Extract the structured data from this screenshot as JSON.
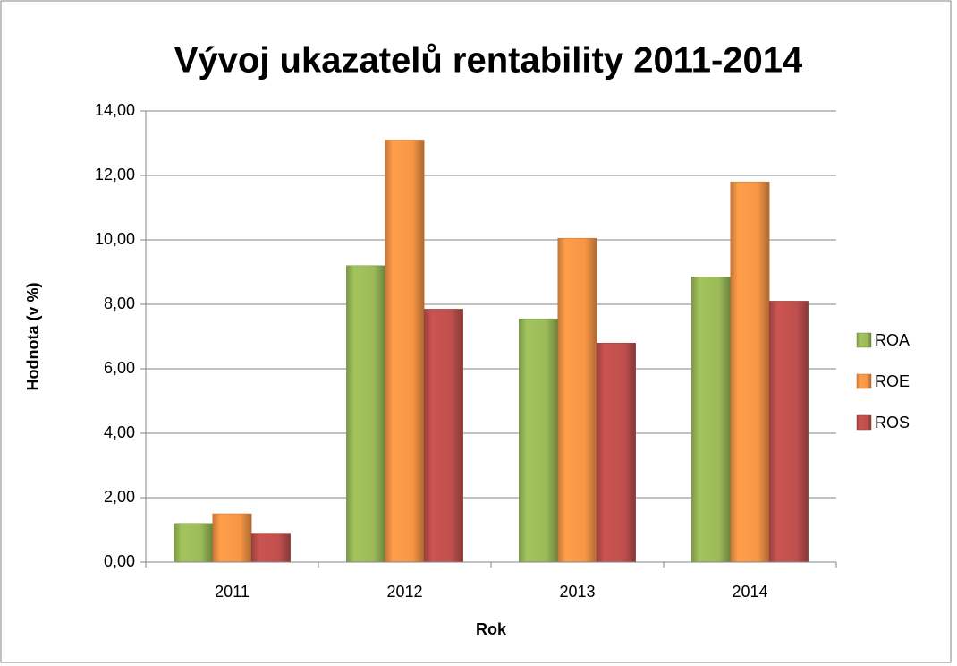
{
  "chart_data": {
    "type": "bar",
    "title": "Vývoj ukazatelů rentability 2011-2014",
    "x_label": "Rok",
    "y_label": "Hodnota (v %)",
    "categories": [
      "2011",
      "2012",
      "2013",
      "2014"
    ],
    "series": [
      {
        "name": "ROA",
        "color": "#9bbb59",
        "values": [
          1.2,
          9.2,
          7.55,
          8.85
        ]
      },
      {
        "name": "ROE",
        "color": "#f79646",
        "values": [
          1.5,
          13.1,
          10.05,
          11.8
        ]
      },
      {
        "name": "ROS",
        "color": "#c0504d",
        "values": [
          0.9,
          7.85,
          6.8,
          8.1
        ]
      }
    ],
    "ylim": [
      0,
      14
    ],
    "yticks": [
      {
        "value": 0,
        "label": "0,00"
      },
      {
        "value": 2,
        "label": "2,00"
      },
      {
        "value": 4,
        "label": "4,00"
      },
      {
        "value": 6,
        "label": "6,00"
      },
      {
        "value": 8,
        "label": "8,00"
      },
      {
        "value": 10,
        "label": "10,00"
      },
      {
        "value": 12,
        "label": "12,00"
      },
      {
        "value": 14,
        "label": "14,00"
      }
    ],
    "grid": true,
    "legend": "right"
  }
}
